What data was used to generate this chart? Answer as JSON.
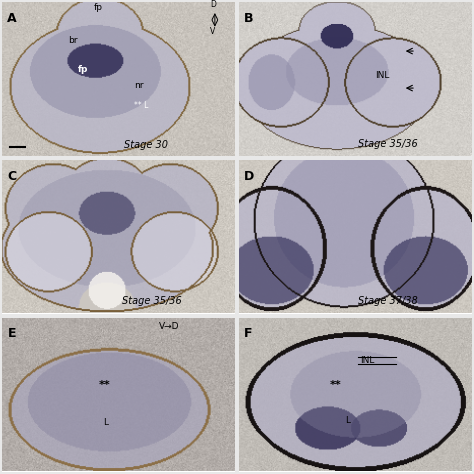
{
  "figure_size": [
    4.74,
    4.74
  ],
  "dpi": 100,
  "background_color": "#e8e8e8",
  "panels": {
    "A": {
      "label": "A",
      "stage": "Stage 30",
      "bg": [
        200,
        195,
        188
      ],
      "tissue": [
        185,
        183,
        200
      ],
      "tissue_dark": [
        140,
        138,
        165
      ],
      "spot": [
        55,
        50,
        90
      ],
      "border": [
        130,
        105,
        65
      ]
    },
    "B": {
      "label": "B",
      "stage": "Stage 35/36",
      "bg": [
        210,
        207,
        202
      ],
      "tissue": [
        188,
        185,
        205
      ],
      "tissue_dark": [
        145,
        142,
        170
      ],
      "spot": [
        48,
        44,
        85
      ],
      "border": [
        80,
        65,
        45
      ]
    },
    "C": {
      "label": "C",
      "stage": "Stage 35/36",
      "bg": [
        205,
        200,
        192
      ],
      "tissue": [
        182,
        180,
        198
      ],
      "tissue_dark": [
        138,
        136,
        162
      ],
      "spot": [
        52,
        48,
        88
      ],
      "border": [
        120,
        95,
        58
      ]
    },
    "D": {
      "label": "D",
      "stage": "Stage 37/38",
      "bg": [
        205,
        200,
        192
      ],
      "tissue": [
        185,
        182,
        202
      ],
      "tissue_dark": [
        140,
        137,
        168
      ],
      "spot": [
        50,
        46,
        88
      ],
      "border": [
        28,
        22,
        22
      ]
    },
    "E": {
      "label": "E",
      "stage": "",
      "bg": [
        178,
        172,
        168
      ],
      "tissue": [
        170,
        167,
        188
      ],
      "tissue_dark": [
        130,
        126,
        155
      ],
      "spot": [
        55,
        50,
        88
      ],
      "border": [
        140,
        112,
        72
      ]
    },
    "F": {
      "label": "F",
      "stage": "",
      "bg": [
        192,
        188,
        182
      ],
      "tissue": [
        178,
        175,
        195
      ],
      "tissue_dark": [
        135,
        132,
        160
      ],
      "spot": [
        45,
        40,
        82
      ],
      "border": [
        22,
        18,
        18
      ]
    }
  },
  "grid": [
    3,
    2
  ],
  "label_fontsize": 9,
  "stage_fontsize": 7,
  "annot_fontsize": 6.5
}
